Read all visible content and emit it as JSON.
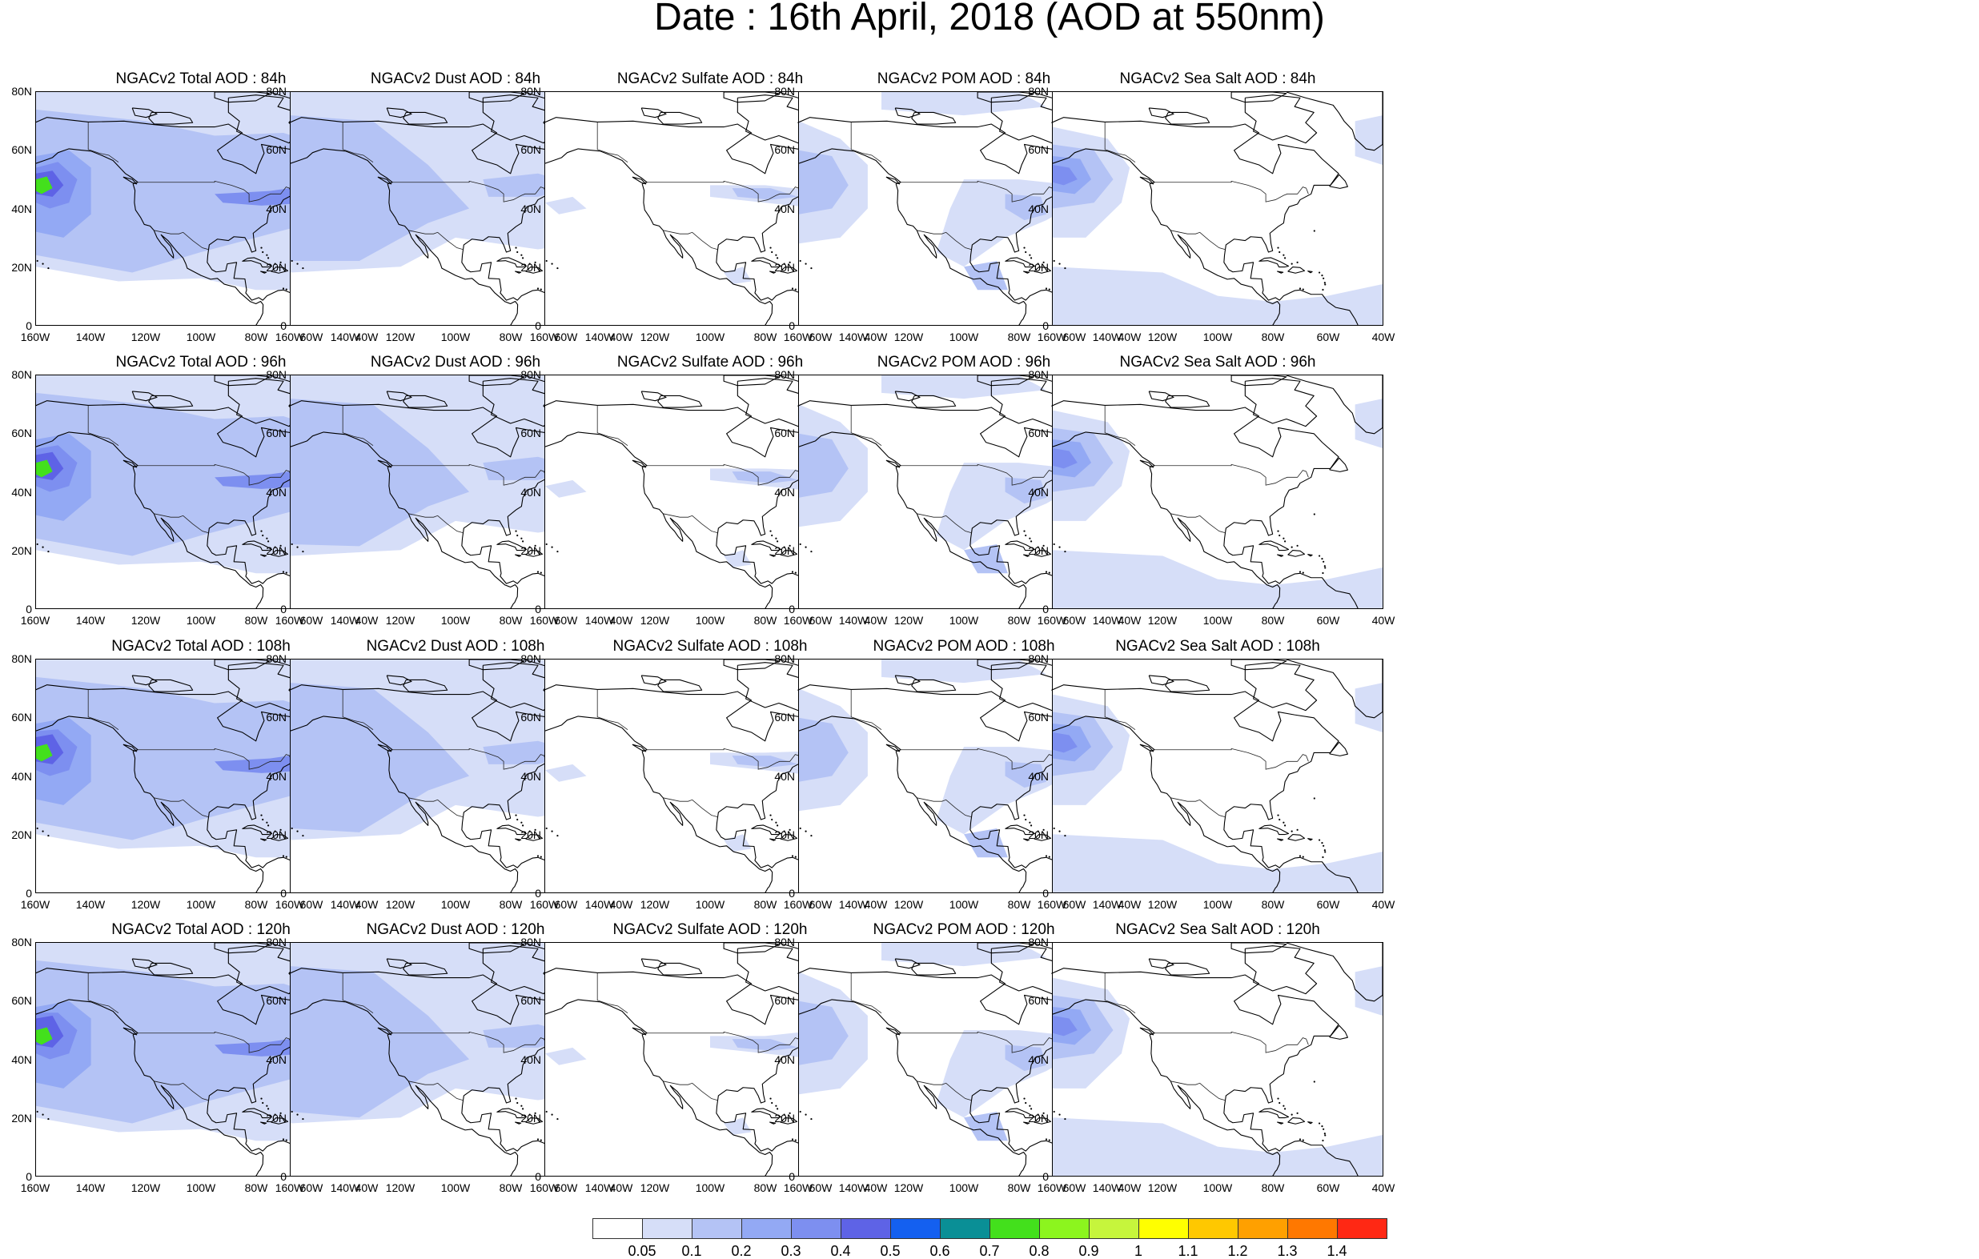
{
  "title": "Date : 16th April, 2018 (AOD at 550nm)",
  "lat_ticks": [
    "80N",
    "60N",
    "40N",
    "20N",
    "0"
  ],
  "lon_ticks": [
    "160W",
    "140W",
    "120W",
    "100W",
    "80W",
    "60W",
    "40W"
  ],
  "panels": [
    [
      {
        "title": "NGACv2 Total AOD : 84h",
        "kind": "total",
        "hour": 84
      },
      {
        "title": "NGACv2 Dust AOD : 84h",
        "kind": "dust",
        "hour": 84
      },
      {
        "title": "NGACv2 Sulfate AOD : 84h",
        "kind": "sulfate",
        "hour": 84
      },
      {
        "title": "NGACv2 POM AOD : 84h",
        "kind": "pom",
        "hour": 84
      },
      {
        "title": "NGACv2 Sea Salt AOD : 84h",
        "kind": "seasalt",
        "hour": 84
      }
    ],
    [
      {
        "title": "NGACv2 Total AOD : 96h",
        "kind": "total",
        "hour": 96
      },
      {
        "title": "NGACv2 Dust AOD : 96h",
        "kind": "dust",
        "hour": 96
      },
      {
        "title": "NGACv2 Sulfate AOD : 96h",
        "kind": "sulfate",
        "hour": 96
      },
      {
        "title": "NGACv2 POM AOD : 96h",
        "kind": "pom",
        "hour": 96
      },
      {
        "title": "NGACv2 Sea Salt AOD : 96h",
        "kind": "seasalt",
        "hour": 96
      }
    ],
    [
      {
        "title": "NGACv2 Total AOD : 108h",
        "kind": "total",
        "hour": 108
      },
      {
        "title": "NGACv2 Dust AOD : 108h",
        "kind": "dust",
        "hour": 108
      },
      {
        "title": "NGACv2 Sulfate AOD : 108h",
        "kind": "sulfate",
        "hour": 108
      },
      {
        "title": "NGACv2 POM AOD : 108h",
        "kind": "pom",
        "hour": 108
      },
      {
        "title": "NGACv2 Sea Salt AOD : 108h",
        "kind": "seasalt",
        "hour": 108
      }
    ],
    [
      {
        "title": "NGACv2 Total AOD : 120h",
        "kind": "total",
        "hour": 120
      },
      {
        "title": "NGACv2 Dust AOD : 120h",
        "kind": "dust",
        "hour": 120
      },
      {
        "title": "NGACv2 Sulfate AOD : 120h",
        "kind": "sulfate",
        "hour": 120
      },
      {
        "title": "NGACv2 POM AOD : 120h",
        "kind": "pom",
        "hour": 120
      },
      {
        "title": "NGACv2 Sea Salt  AOD : 120h",
        "kind": "seasalt",
        "hour": 120
      }
    ]
  ],
  "colorbar": {
    "labels": [
      "0.05",
      "0.1",
      "0.2",
      "0.3",
      "0.4",
      "0.5",
      "0.6",
      "0.7",
      "0.8",
      "0.9",
      "1",
      "1.1",
      "1.2",
      "1.3",
      "1.4"
    ],
    "colors": [
      "#ffffff",
      "#d6def8",
      "#b4c3f5",
      "#93a9f4",
      "#7d8ff0",
      "#5e63e6",
      "#1460f0",
      "#0a8f96",
      "#43e01c",
      "#8cf51e",
      "#c6f53c",
      "#ffff00",
      "#ffc800",
      "#ffa000",
      "#ff7800",
      "#ff2814"
    ]
  },
  "map_colors": {
    "coast": "#000000",
    "light": "#d6def8",
    "mid": "#b4c3f5",
    "med": "#93a9f4",
    "strong": "#7d8ff0",
    "deep": "#5e63e6",
    "teal": "#0a8f96",
    "green": "#43e01c",
    "lime": "#c6f53c"
  }
}
